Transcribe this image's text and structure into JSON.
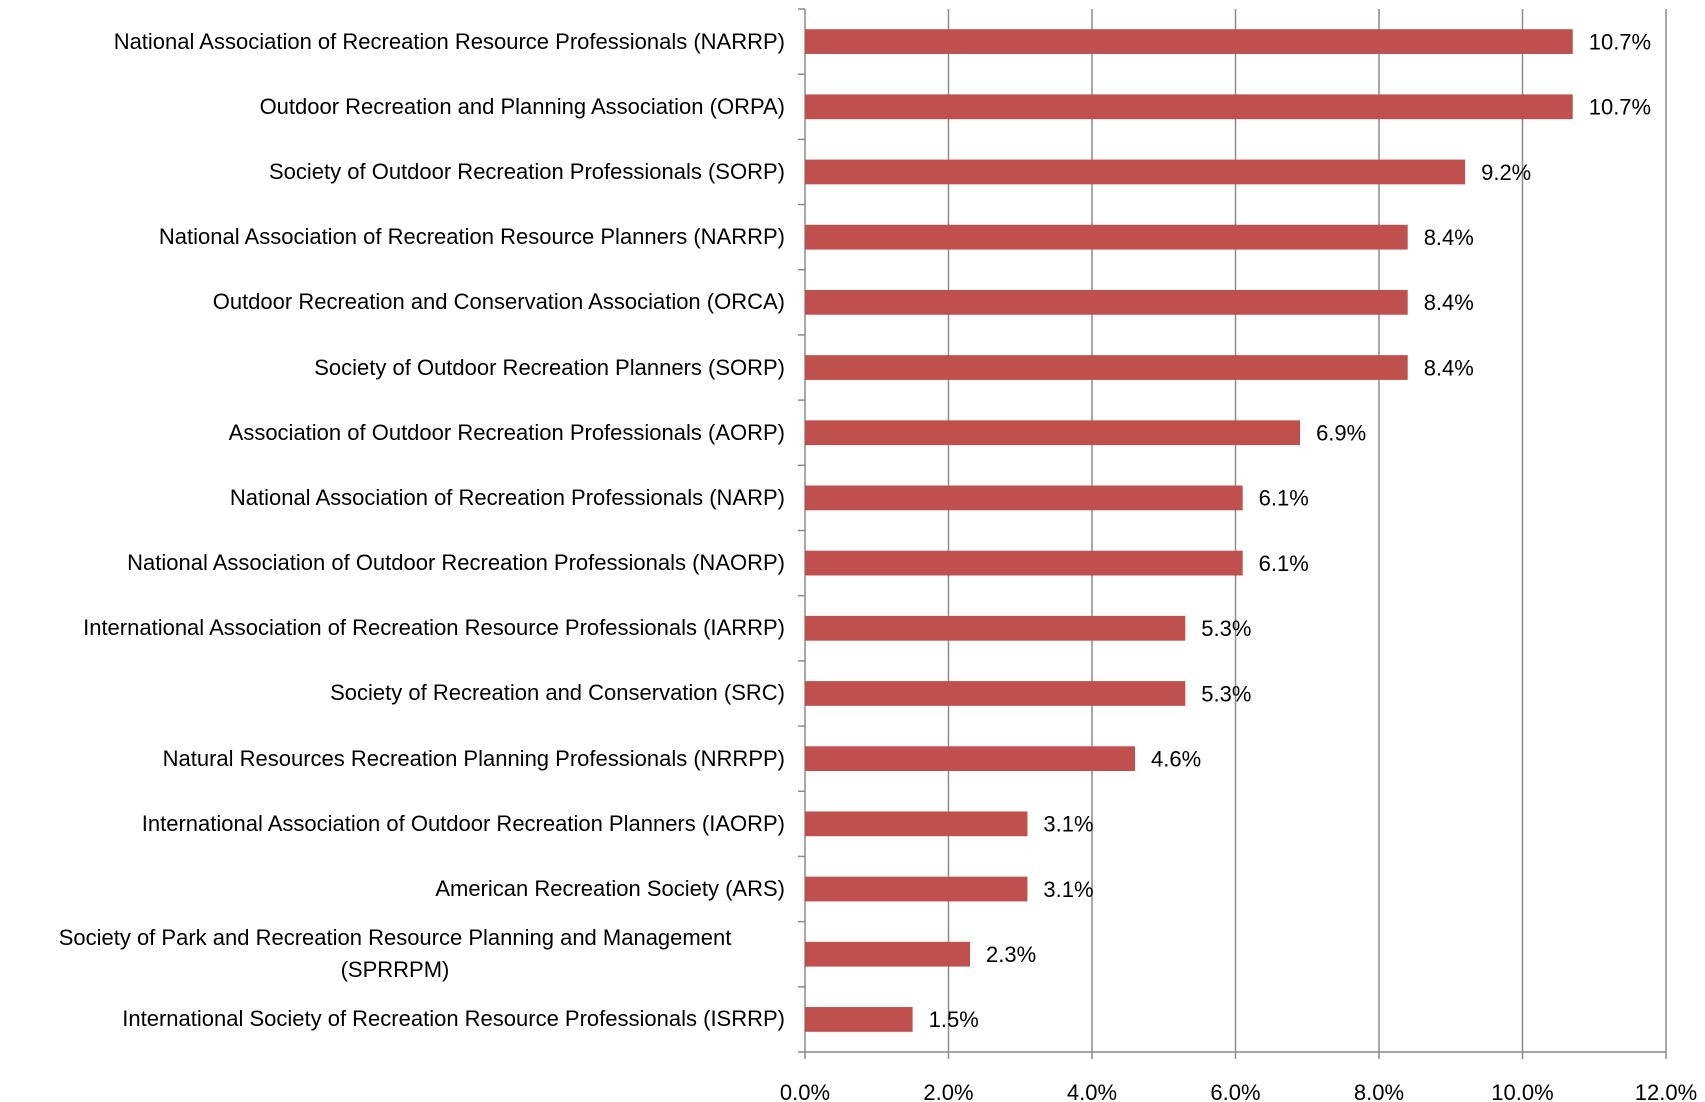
{
  "chart_data": {
    "type": "bar",
    "orientation": "horizontal",
    "categories": [
      "National Association of Recreation Resource Professionals (NARRP)",
      "Outdoor Recreation and Planning Association (ORPA)",
      "Society of Outdoor Recreation Professionals (SORP)",
      "National Association of Recreation Resource Planners (NARRP)",
      "Outdoor Recreation and Conservation Association (ORCA)",
      "Society of Outdoor Recreation Planners (SORP)",
      "Association of Outdoor Recreation Professionals (AORP)",
      "National Association of Recreation Professionals (NARP)",
      "National Association of Outdoor Recreation Professionals (NAORP)",
      "International Association of Recreation Resource Professionals (IARRP)",
      "Society of Recreation and Conservation (SRC)",
      "Natural Resources Recreation Planning Professionals (NRRPP)",
      "International Association of Outdoor Recreation Planners (IAORP)",
      "American Recreation Society (ARS)",
      "Society of Park and Recreation Resource Planning and Management (SPRRPM)",
      "International Society of Recreation Resource Professionals (ISRRP)"
    ],
    "values": [
      10.7,
      10.7,
      9.2,
      8.4,
      8.4,
      8.4,
      6.9,
      6.1,
      6.1,
      5.3,
      5.3,
      4.6,
      3.1,
      3.1,
      2.3,
      1.5
    ],
    "value_labels": [
      "10.7%",
      "10.7%",
      "9.2%",
      "8.4%",
      "8.4%",
      "8.4%",
      "6.9%",
      "6.1%",
      "6.1%",
      "5.3%",
      "5.3%",
      "4.6%",
      "3.1%",
      "3.1%",
      "2.3%",
      "1.5%"
    ],
    "color": "#c0504d",
    "xlim": [
      0,
      12
    ],
    "xticks": [
      {
        "value": 0,
        "label": "0.0%"
      },
      {
        "value": 2,
        "label": "2.0%"
      },
      {
        "value": 4,
        "label": "4.0%"
      },
      {
        "value": 6,
        "label": "6.0%"
      },
      {
        "value": 8,
        "label": "8.0%"
      },
      {
        "value": 10,
        "label": "10.0%"
      },
      {
        "value": 12,
        "label": "12.0%"
      }
    ],
    "grid": true
  }
}
